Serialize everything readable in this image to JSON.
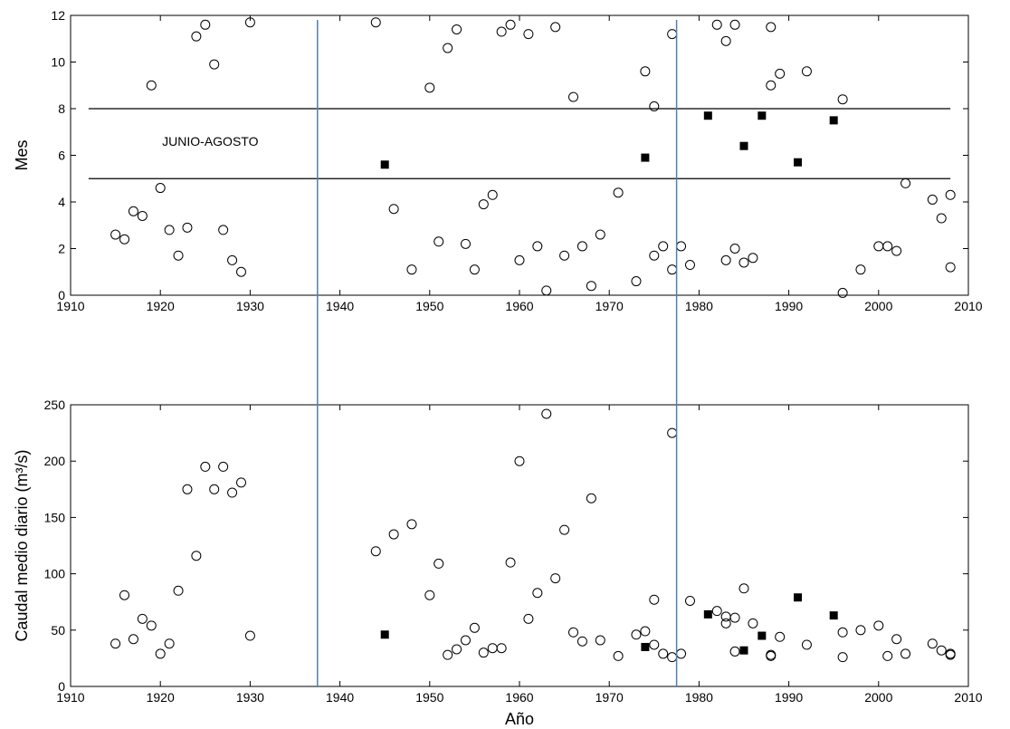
{
  "chart_data": [
    {
      "type": "scatter",
      "title": "",
      "xlabel": "",
      "ylabel": "Mes",
      "xlim": [
        1910,
        2010
      ],
      "ylim": [
        0,
        12
      ],
      "xticks": [
        1910,
        1920,
        1930,
        1940,
        1950,
        1960,
        1970,
        1980,
        1990,
        2000,
        2010
      ],
      "yticks": [
        0,
        2,
        4,
        6,
        8,
        10,
        12
      ],
      "grid": false,
      "annotation": "JUNIO-AGOSTO",
      "hlines": [
        5,
        8
      ],
      "series": [
        {
          "marker": "open-circle",
          "points": [
            [
              1915,
              2.6
            ],
            [
              1916,
              2.4
            ],
            [
              1917,
              3.6
            ],
            [
              1918,
              3.4
            ],
            [
              1919,
              9.0
            ],
            [
              1920,
              4.6
            ],
            [
              1921,
              2.8
            ],
            [
              1922,
              1.7
            ],
            [
              1923,
              2.9
            ],
            [
              1924,
              11.1
            ],
            [
              1925,
              11.6
            ],
            [
              1926,
              9.9
            ],
            [
              1927,
              2.8
            ],
            [
              1928,
              1.5
            ],
            [
              1929,
              1.0
            ],
            [
              1930,
              11.7
            ],
            [
              1944,
              11.7
            ],
            [
              1946,
              3.7
            ],
            [
              1948,
              1.1
            ],
            [
              1950,
              8.9
            ],
            [
              1951,
              2.3
            ],
            [
              1952,
              10.6
            ],
            [
              1953,
              11.4
            ],
            [
              1954,
              2.2
            ],
            [
              1955,
              1.1
            ],
            [
              1956,
              3.9
            ],
            [
              1957,
              4.3
            ],
            [
              1958,
              11.3
            ],
            [
              1959,
              11.6
            ],
            [
              1960,
              1.5
            ],
            [
              1961,
              11.2
            ],
            [
              1962,
              2.1
            ],
            [
              1963,
              0.2
            ],
            [
              1964,
              11.5
            ],
            [
              1965,
              1.7
            ],
            [
              1966,
              8.5
            ],
            [
              1967,
              2.1
            ],
            [
              1968,
              0.4
            ],
            [
              1969,
              2.6
            ],
            [
              1971,
              4.4
            ],
            [
              1973,
              0.6
            ],
            [
              1974,
              9.6
            ],
            [
              1975,
              8.1
            ],
            [
              1975,
              1.7
            ],
            [
              1976,
              2.1
            ],
            [
              1977,
              1.1
            ],
            [
              1977,
              11.2
            ],
            [
              1978,
              2.1
            ],
            [
              1979,
              1.3
            ],
            [
              1982,
              11.6
            ],
            [
              1983,
              10.9
            ],
            [
              1983,
              1.5
            ],
            [
              1984,
              11.6
            ],
            [
              1984,
              2.0
            ],
            [
              1985,
              1.4
            ],
            [
              1986,
              1.6
            ],
            [
              1988,
              11.5
            ],
            [
              1988,
              9.0
            ],
            [
              1989,
              9.5
            ],
            [
              1992,
              9.6
            ],
            [
              1996,
              8.4
            ],
            [
              1996,
              0.1
            ],
            [
              1998,
              1.1
            ],
            [
              2000,
              2.1
            ],
            [
              2001,
              2.1
            ],
            [
              2002,
              1.9
            ],
            [
              2003,
              4.8
            ],
            [
              2006,
              4.1
            ],
            [
              2007,
              3.3
            ],
            [
              2008,
              4.3
            ],
            [
              2008,
              1.2
            ]
          ]
        },
        {
          "marker": "filled-square",
          "points": [
            [
              1945,
              5.6
            ],
            [
              1974,
              5.9
            ],
            [
              1981,
              7.7
            ],
            [
              1985,
              6.4
            ],
            [
              1987,
              7.7
            ],
            [
              1991,
              5.7
            ],
            [
              1995,
              7.5
            ]
          ]
        }
      ]
    },
    {
      "type": "scatter",
      "title": "",
      "xlabel": "Año",
      "ylabel": "Caudal medio diario (m³/s)",
      "xlim": [
        1910,
        2010
      ],
      "ylim": [
        0,
        250
      ],
      "xticks": [
        1910,
        1920,
        1930,
        1940,
        1950,
        1960,
        1970,
        1980,
        1990,
        2000,
        2010
      ],
      "yticks": [
        0,
        50,
        100,
        150,
        200,
        250
      ],
      "grid": false,
      "series": [
        {
          "marker": "open-circle",
          "points": [
            [
              1915,
              38
            ],
            [
              1916,
              81
            ],
            [
              1917,
              42
            ],
            [
              1918,
              60
            ],
            [
              1919,
              54
            ],
            [
              1920,
              29
            ],
            [
              1921,
              38
            ],
            [
              1922,
              85
            ],
            [
              1923,
              175
            ],
            [
              1924,
              116
            ],
            [
              1925,
              195
            ],
            [
              1926,
              175
            ],
            [
              1927,
              195
            ],
            [
              1928,
              172
            ],
            [
              1929,
              181
            ],
            [
              1930,
              45
            ],
            [
              1944,
              120
            ],
            [
              1946,
              135
            ],
            [
              1948,
              144
            ],
            [
              1950,
              81
            ],
            [
              1951,
              109
            ],
            [
              1952,
              28
            ],
            [
              1953,
              33
            ],
            [
              1954,
              41
            ],
            [
              1955,
              52
            ],
            [
              1956,
              30
            ],
            [
              1957,
              34
            ],
            [
              1958,
              34
            ],
            [
              1959,
              110
            ],
            [
              1960,
              200
            ],
            [
              1961,
              60
            ],
            [
              1962,
              83
            ],
            [
              1963,
              242
            ],
            [
              1964,
              96
            ],
            [
              1965,
              139
            ],
            [
              1966,
              48
            ],
            [
              1967,
              40
            ],
            [
              1968,
              167
            ],
            [
              1969,
              41
            ],
            [
              1971,
              27
            ],
            [
              1973,
              46
            ],
            [
              1974,
              49
            ],
            [
              1975,
              77
            ],
            [
              1975,
              37
            ],
            [
              1976,
              29
            ],
            [
              1977,
              225
            ],
            [
              1977,
              26
            ],
            [
              1978,
              29
            ],
            [
              1979,
              76
            ],
            [
              1982,
              67
            ],
            [
              1983,
              62
            ],
            [
              1983,
              56
            ],
            [
              1984,
              61
            ],
            [
              1984,
              31
            ],
            [
              1985,
              87
            ],
            [
              1986,
              56
            ],
            [
              1988,
              27
            ],
            [
              1988,
              28
            ],
            [
              1989,
              44
            ],
            [
              1992,
              37
            ],
            [
              1996,
              48
            ],
            [
              1996,
              26
            ],
            [
              1998,
              50
            ],
            [
              2000,
              54
            ],
            [
              2001,
              27
            ],
            [
              2002,
              42
            ],
            [
              2003,
              29
            ],
            [
              2006,
              38
            ],
            [
              2007,
              32
            ],
            [
              2008,
              28
            ],
            [
              2008,
              29
            ]
          ]
        },
        {
          "marker": "filled-square",
          "points": [
            [
              1945,
              46
            ],
            [
              1974,
              35
            ],
            [
              1981,
              64
            ],
            [
              1985,
              32
            ],
            [
              1987,
              45
            ],
            [
              1991,
              79
            ],
            [
              1995,
              63
            ]
          ]
        }
      ]
    }
  ],
  "vertical_lines": [
    1937.5,
    1977.5
  ],
  "colors": {
    "axes": "#000000",
    "divider": "#4f7fb3",
    "marker": "#000000"
  }
}
